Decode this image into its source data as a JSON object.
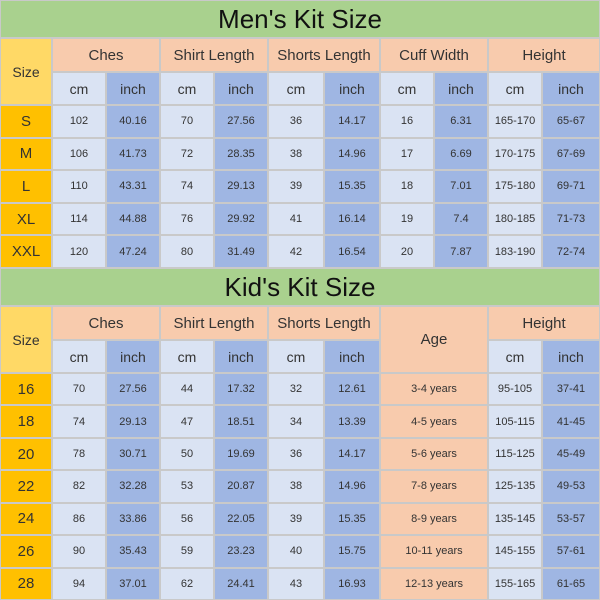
{
  "mens": {
    "title": "Men's Kit Size",
    "size_header": "Size",
    "groups": [
      "Ches",
      "Shirt Length",
      "Shorts Length",
      "Cuff Width",
      "Height"
    ],
    "units": [
      "cm",
      "inch",
      "cm",
      "inch",
      "cm",
      "inch",
      "cm",
      "inch",
      "cm",
      "inch"
    ],
    "rows": [
      [
        "S",
        "102",
        "40.16",
        "70",
        "27.56",
        "36",
        "14.17",
        "16",
        "6.31",
        "165-170",
        "65-67"
      ],
      [
        "M",
        "106",
        "41.73",
        "72",
        "28.35",
        "38",
        "14.96",
        "17",
        "6.69",
        "170-175",
        "67-69"
      ],
      [
        "L",
        "110",
        "43.31",
        "74",
        "29.13",
        "39",
        "15.35",
        "18",
        "7.01",
        "175-180",
        "69-71"
      ],
      [
        "XL",
        "114",
        "44.88",
        "76",
        "29.92",
        "41",
        "16.14",
        "19",
        "7.4",
        "180-185",
        "71-73"
      ],
      [
        "XXL",
        "120",
        "47.24",
        "80",
        "31.49",
        "42",
        "16.54",
        "20",
        "7.87",
        "183-190",
        "72-74"
      ]
    ]
  },
  "kids": {
    "title": "Kid's Kit Size",
    "size_header": "Size",
    "groups": [
      "Ches",
      "Shirt Length",
      "Shorts Length",
      "Age",
      "Height"
    ],
    "units": [
      "cm",
      "inch",
      "cm",
      "inch",
      "cm",
      "inch",
      "cm",
      "inch"
    ],
    "rows": [
      [
        "16",
        "70",
        "27.56",
        "44",
        "17.32",
        "32",
        "12.61",
        "3-4 years",
        "95-105",
        "37-41"
      ],
      [
        "18",
        "74",
        "29.13",
        "47",
        "18.51",
        "34",
        "13.39",
        "4-5 years",
        "105-115",
        "41-45"
      ],
      [
        "20",
        "78",
        "30.71",
        "50",
        "19.69",
        "36",
        "14.17",
        "5-6 years",
        "115-125",
        "45-49"
      ],
      [
        "22",
        "82",
        "32.28",
        "53",
        "20.87",
        "38",
        "14.96",
        "7-8 years",
        "125-135",
        "49-53"
      ],
      [
        "24",
        "86",
        "33.86",
        "56",
        "22.05",
        "39",
        "15.35",
        "8-9 years",
        "135-145",
        "53-57"
      ],
      [
        "26",
        "90",
        "35.43",
        "59",
        "23.23",
        "40",
        "15.75",
        "10-11 years",
        "145-155",
        "57-61"
      ],
      [
        "28",
        "94",
        "37.01",
        "62",
        "24.41",
        "43",
        "16.93",
        "12-13 years",
        "155-165",
        "61-65"
      ]
    ]
  }
}
